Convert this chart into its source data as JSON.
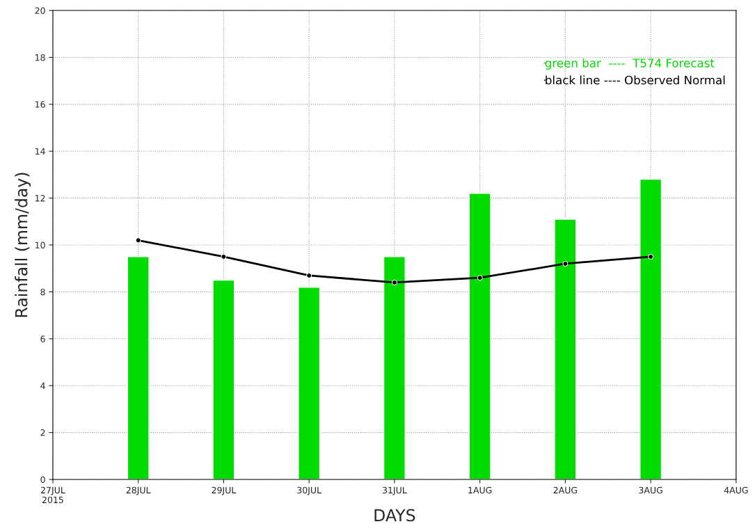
{
  "chart_data": {
    "type": "bar",
    "xlabel": "DAYS",
    "ylabel": "Rainfall (mm/day)",
    "x": [
      "2015-07-28",
      "2015-07-29",
      "2015-07-30",
      "2015-07-31",
      "2015-08-01",
      "2015-08-02",
      "2015-08-03"
    ],
    "series": [
      {
        "name": "green bar  ----  T574 Forecast",
        "color": "#00dc00",
        "values": [
          9.5,
          8.5,
          8.2,
          9.5,
          12.2,
          11.1,
          12.8
        ]
      },
      {
        "name": "black line ---- Observed Normal",
        "type": "line",
        "color": "#000000",
        "marker": "circle",
        "values": [
          10.2,
          9.5,
          8.7,
          8.4,
          8.6,
          9.2,
          9.5
        ]
      }
    ],
    "xlim": [
      "2015-07-27",
      "2015-08-04"
    ],
    "xticks": [
      {
        "value": "2015-07-27",
        "label": "27JUL\n2015"
      },
      {
        "value": "2015-07-28",
        "label": "28JUL"
      },
      {
        "value": "2015-07-29",
        "label": "29JUL"
      },
      {
        "value": "2015-07-30",
        "label": "30JUL"
      },
      {
        "value": "2015-07-31",
        "label": "31JUL"
      },
      {
        "value": "2015-08-01",
        "label": "1AUG"
      },
      {
        "value": "2015-08-02",
        "label": "2AUG"
      },
      {
        "value": "2015-08-03",
        "label": "3AUG"
      },
      {
        "value": "2015-08-04",
        "label": "4AUG"
      }
    ],
    "ylim": [
      0,
      20
    ],
    "yticks": [
      0,
      2,
      4,
      6,
      8,
      10,
      12,
      14,
      16,
      18,
      20
    ],
    "grid": true,
    "legend": "top right",
    "line_style": "solid"
  }
}
